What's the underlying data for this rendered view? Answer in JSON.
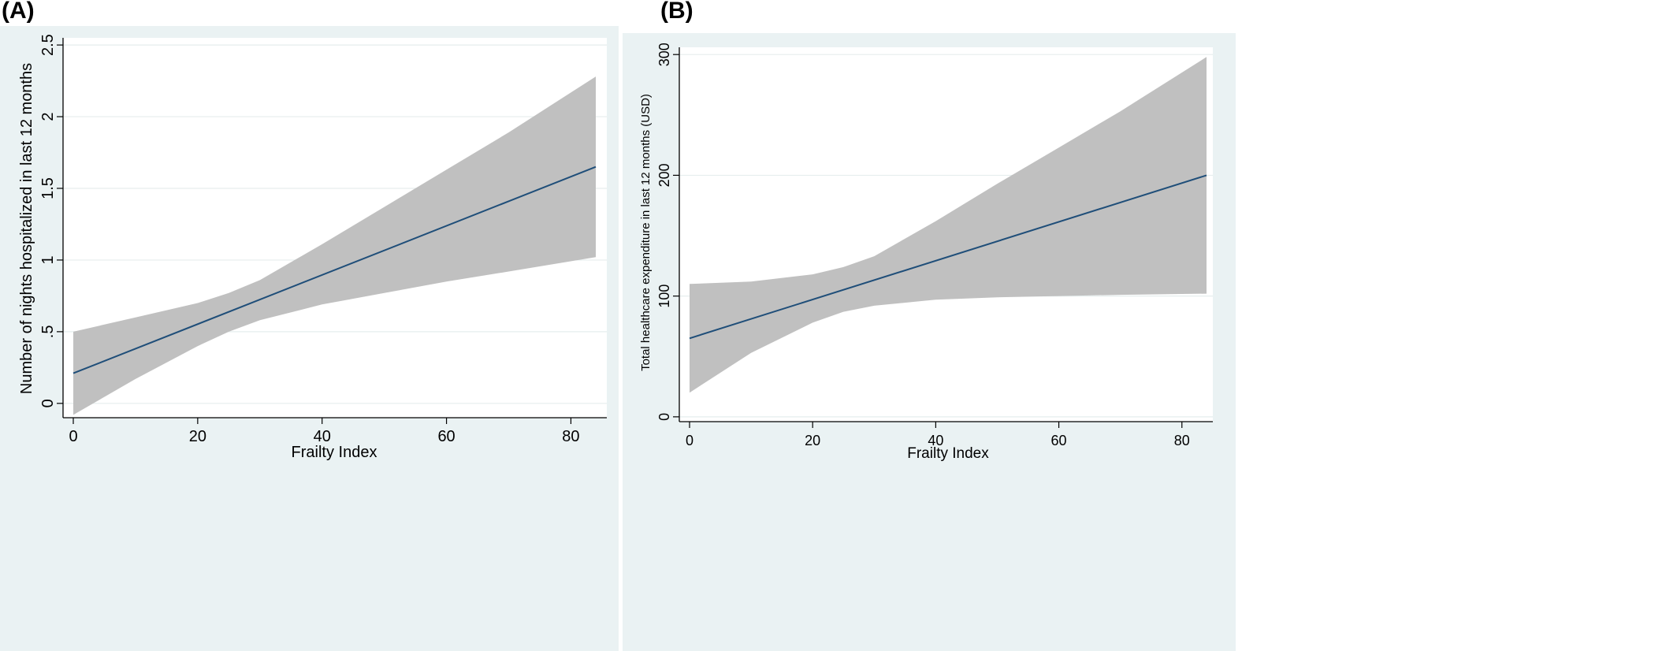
{
  "panels": {
    "a": {
      "label": "(A)"
    },
    "b": {
      "label": "(B)"
    }
  },
  "chart_data": [
    {
      "type": "line",
      "panel": "(A)",
      "xlabel": "Frailty Index",
      "ylabel": "Number of nights hospitalized in last 12 months",
      "xlim": [
        0,
        84
      ],
      "ylim": [
        -0.1,
        2.55
      ],
      "xticks": [
        0,
        20,
        40,
        60,
        80
      ],
      "xtick_labels": [
        "0",
        "20",
        "40",
        "60",
        "80"
      ],
      "yticks": [
        0,
        0.5,
        1,
        1.5,
        2,
        2.5
      ],
      "ytick_labels": [
        "0",
        ".5",
        "1",
        "1.5",
        "2",
        "2.5"
      ],
      "grid": true,
      "fit_color": "#1f4e79",
      "band_color": "#c0c0c0",
      "fit": {
        "x": [
          0,
          84
        ],
        "y": [
          0.21,
          1.65
        ]
      },
      "ci_band": {
        "x": [
          0,
          10,
          20,
          25,
          30,
          40,
          50,
          60,
          70,
          84
        ],
        "lower": [
          -0.08,
          0.17,
          0.4,
          0.5,
          0.58,
          0.69,
          0.77,
          0.85,
          0.92,
          1.02
        ],
        "upper": [
          0.5,
          0.6,
          0.7,
          0.77,
          0.86,
          1.11,
          1.37,
          1.63,
          1.89,
          2.28
        ]
      }
    },
    {
      "type": "line",
      "panel": "(B)",
      "xlabel": "Frailty Index",
      "ylabel": "Total healthcare expenditure in last 12 months (USD)",
      "xlim": [
        0,
        84
      ],
      "ylim": [
        -4,
        306
      ],
      "xticks": [
        0,
        20,
        40,
        60,
        80
      ],
      "xtick_labels": [
        "0",
        "20",
        "40",
        "60",
        "80"
      ],
      "yticks": [
        0,
        100,
        200,
        300
      ],
      "ytick_labels": [
        "0",
        "100",
        "200",
        "300"
      ],
      "grid": true,
      "fit_color": "#1f4e79",
      "band_color": "#c0c0c0",
      "fit": {
        "x": [
          0,
          84
        ],
        "y": [
          65,
          200
        ]
      },
      "ci_band": {
        "x": [
          0,
          10,
          20,
          25,
          30,
          40,
          50,
          60,
          70,
          84
        ],
        "lower": [
          20,
          53,
          78,
          87,
          92,
          97,
          99,
          100,
          101,
          102
        ],
        "upper": [
          110,
          112,
          118,
          124,
          133,
          162,
          193,
          223,
          253,
          298
        ]
      }
    }
  ]
}
